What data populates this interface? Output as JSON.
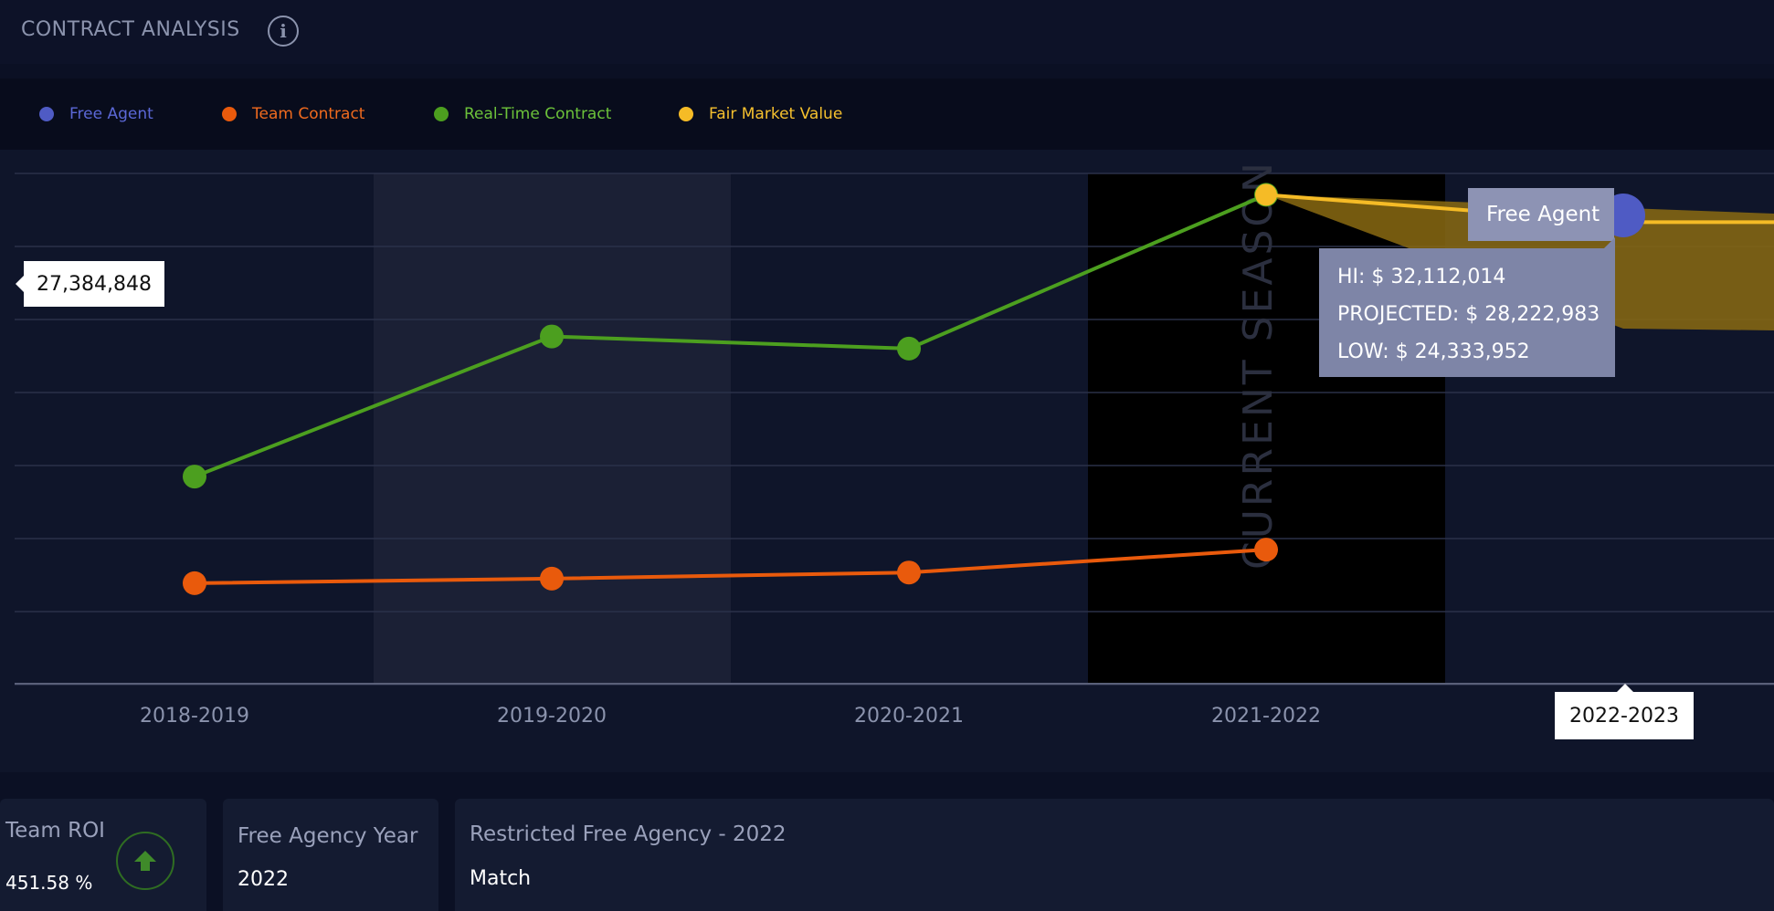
{
  "header": {
    "title": "CONTRACT ANALYSIS",
    "info_icon": "info-icon"
  },
  "legend": [
    {
      "label": "Free Agent",
      "color": "#4f5bc4",
      "text_color": "#5b68d6"
    },
    {
      "label": "Team Contract",
      "color": "#e95a0c",
      "text_color": "#ef6a1e"
    },
    {
      "label": "Real-Time Contract",
      "color": "#4c9f1f",
      "text_color": "#6cc23a"
    },
    {
      "label": "Fair Market Value",
      "color": "#f5bb26",
      "text_color": "#f5c02e"
    }
  ],
  "chart_data": {
    "type": "line",
    "categories": [
      "2018-2019",
      "2019-2020",
      "2020-2021",
      "2021-2022",
      "2022-2023"
    ],
    "series": [
      {
        "name": "Real-Time Contract",
        "color": "#4c9f1f",
        "values": [
          13600000,
          22800000,
          22000000,
          32100000,
          null
        ]
      },
      {
        "name": "Team Contract",
        "color": "#e95a0c",
        "values": [
          6600000,
          6900000,
          7300000,
          8800000,
          null
        ]
      },
      {
        "name": "Fair Market Value",
        "color": "#f5bb26",
        "values": [
          null,
          null,
          null,
          32100000,
          30300000
        ]
      }
    ],
    "ylim": [
      0,
      35000000
    ],
    "grid": true,
    "current_season_label": "CURRENT SEASON",
    "value_callout": "27,384,848",
    "free_agent_tooltip": "Free Agent",
    "range_tooltip": {
      "hi": "HI:  $ 32,112,014",
      "projected": "PROJECTED:  $ 28,222,983",
      "low": "LOW:  $ 24,333,952"
    },
    "highlighted_category": "2022-2023"
  },
  "cards": {
    "team_roi": {
      "title": "Team ROI",
      "value": "451.58 %",
      "icon": "arrow-up-icon"
    },
    "free_agency_year": {
      "title": "Free Agency Year",
      "value": "2022"
    },
    "restricted": {
      "title": "Restricted Free Agency - 2022",
      "value": "Match"
    }
  }
}
